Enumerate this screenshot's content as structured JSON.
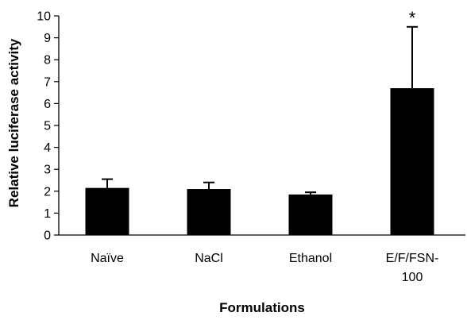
{
  "chart_data": {
    "type": "bar",
    "title": "",
    "xlabel": "Formulations",
    "ylabel": "Relative luciferase activity",
    "ylim": [
      0,
      10
    ],
    "yticks": [
      0,
      1,
      2,
      3,
      4,
      5,
      6,
      7,
      8,
      9,
      10
    ],
    "categories": [
      {
        "lines": [
          "Naïve"
        ]
      },
      {
        "lines": [
          "NaCl"
        ]
      },
      {
        "lines": [
          "Ethanol"
        ]
      },
      {
        "lines": [
          "E/F/FSN-",
          "100"
        ]
      }
    ],
    "values": [
      2.15,
      2.1,
      1.85,
      6.7
    ],
    "error_upper": [
      0.4,
      0.3,
      0.1,
      2.8
    ],
    "annotations": [
      "",
      "",
      "",
      "*"
    ],
    "grid": false,
    "legend": "none",
    "colors": {
      "bar": "#000000",
      "axis": "#000000",
      "background": "#ffffff"
    }
  }
}
